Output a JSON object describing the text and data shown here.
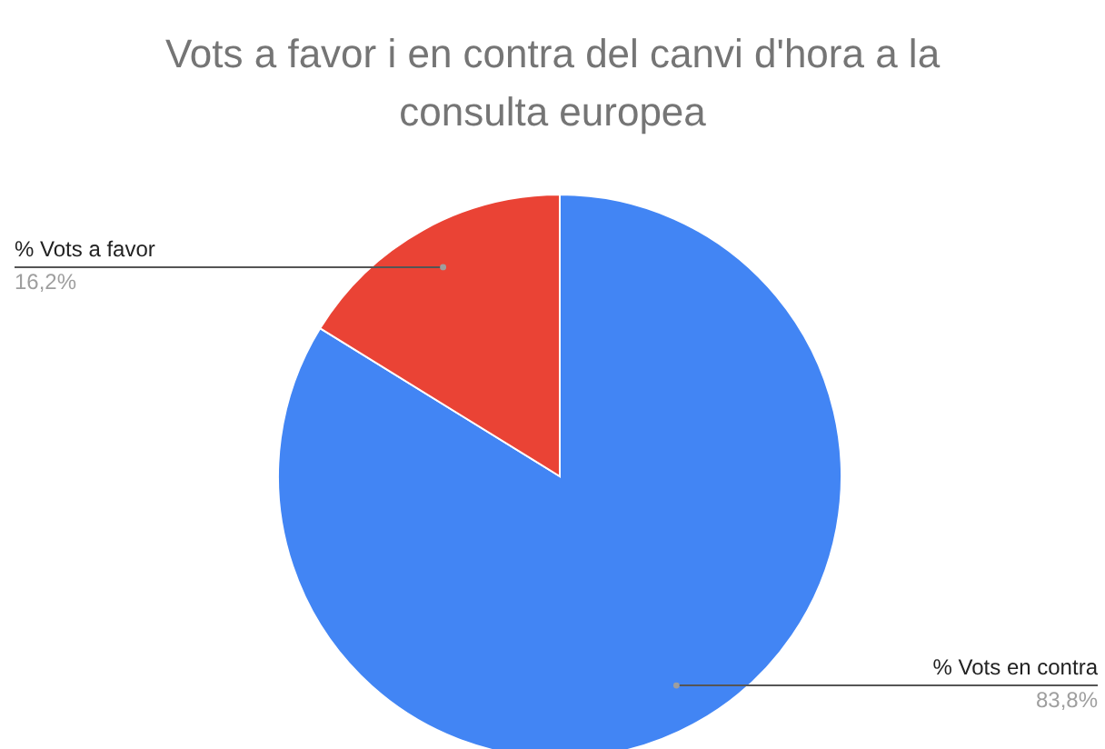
{
  "chart_data": {
    "type": "pie",
    "title": "Vots a favor i en contra del canvi d'hora a la consulta europea",
    "categories": [
      "% Vots en contra",
      "% Vots a favor"
    ],
    "values": [
      83.8,
      16.2
    ],
    "colors": [
      "#4285f4",
      "#ea4335"
    ],
    "value_labels": [
      "83,8%",
      "16,2%"
    ]
  }
}
